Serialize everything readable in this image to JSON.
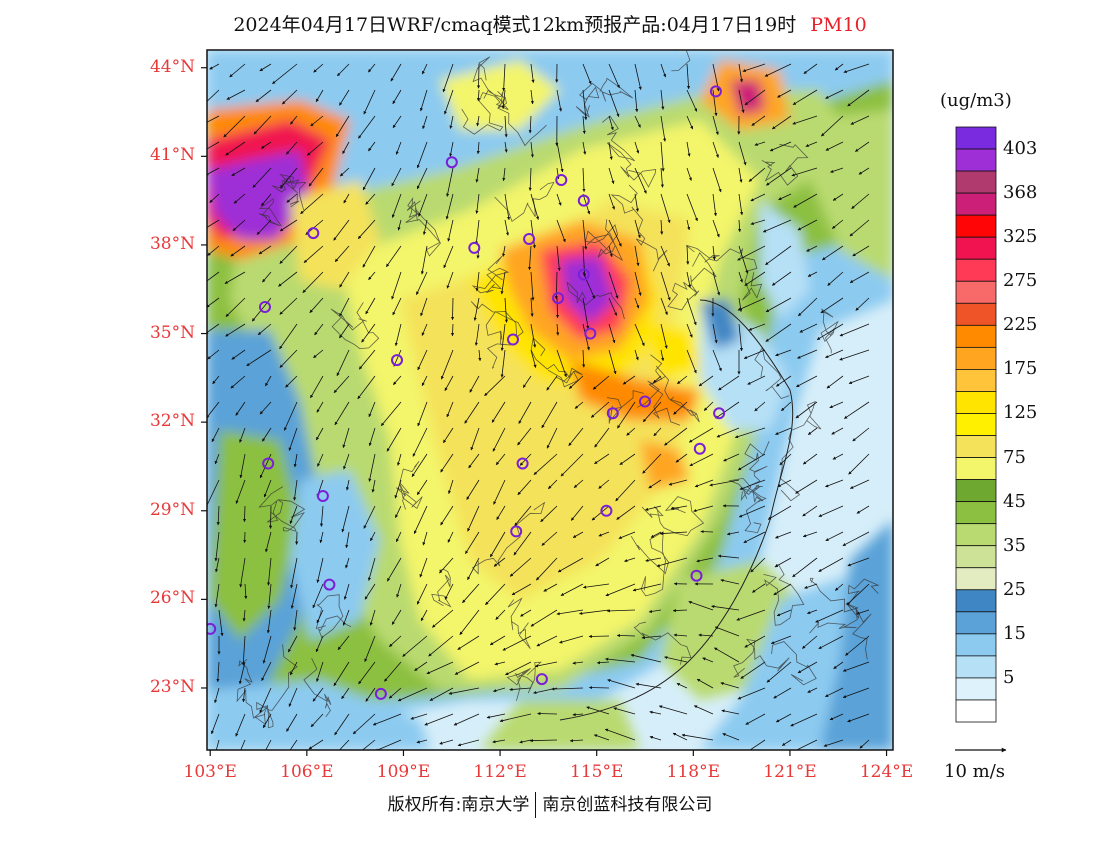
{
  "title": {
    "main": "2024年04月17日WRF/cmaq模式12km预报产品:04月17日19时",
    "pollutant": "PM10"
  },
  "axes": {
    "lat_labels": [
      "44°N",
      "41°N",
      "38°N",
      "35°N",
      "32°N",
      "29°N",
      "26°N",
      "23°N"
    ],
    "lat_values": [
      44,
      41,
      38,
      35,
      32,
      29,
      26,
      23
    ],
    "lon_labels": [
      "103°E",
      "106°E",
      "109°E",
      "112°E",
      "115°E",
      "118°E",
      "121°E",
      "124°E"
    ],
    "lon_values": [
      103,
      106,
      109,
      112,
      115,
      118,
      121,
      124
    ],
    "lat_range": [
      20.9,
      44.6
    ],
    "lon_range": [
      102.9,
      124.2
    ]
  },
  "colorbar": {
    "unit": "(ug/m3)",
    "labels": [
      "403",
      "368",
      "325",
      "275",
      "225",
      "175",
      "125",
      "75",
      "45",
      "35",
      "25",
      "15",
      "5"
    ],
    "colors": [
      "#7a2be0",
      "#9e2fd6",
      "#b03a6e",
      "#cc1f78",
      "#ff0505",
      "#f0134f",
      "#ff3a56",
      "#f86a6a",
      "#ee5428",
      "#ff8a00",
      "#ffa520",
      "#ffc43a",
      "#ffe400",
      "#fff000",
      "#f4e25a",
      "#f3f56a",
      "#6ea830",
      "#8cc040",
      "#b9da70",
      "#cde296",
      "#e2ecc0",
      "#3f86c4",
      "#5aa2d8",
      "#8ccaf0",
      "#b6e0f6",
      "#ddf2fb",
      "#ffffff"
    ]
  },
  "stations": [
    {
      "lon": 118.7,
      "lat": 43.2
    },
    {
      "lon": 110.5,
      "lat": 40.8
    },
    {
      "lon": 113.9,
      "lat": 40.2
    },
    {
      "lon": 114.6,
      "lat": 39.5
    },
    {
      "lon": 106.2,
      "lat": 38.4
    },
    {
      "lon": 111.2,
      "lat": 37.9
    },
    {
      "lon": 112.9,
      "lat": 38.2
    },
    {
      "lon": 114.6,
      "lat": 37.0
    },
    {
      "lon": 113.8,
      "lat": 36.2
    },
    {
      "lon": 104.7,
      "lat": 35.9
    },
    {
      "lon": 112.4,
      "lat": 34.8
    },
    {
      "lon": 114.8,
      "lat": 35.0
    },
    {
      "lon": 108.8,
      "lat": 34.1
    },
    {
      "lon": 116.5,
      "lat": 32.7
    },
    {
      "lon": 118.8,
      "lat": 32.3
    },
    {
      "lon": 115.5,
      "lat": 32.3
    },
    {
      "lon": 118.2,
      "lat": 31.1
    },
    {
      "lon": 104.8,
      "lat": 30.6
    },
    {
      "lon": 112.7,
      "lat": 30.6
    },
    {
      "lon": 106.5,
      "lat": 29.5
    },
    {
      "lon": 115.3,
      "lat": 29.0
    },
    {
      "lon": 112.5,
      "lat": 28.3
    },
    {
      "lon": 106.7,
      "lat": 26.5
    },
    {
      "lon": 118.1,
      "lat": 26.8
    },
    {
      "lon": 103.0,
      "lat": 25.0
    },
    {
      "lon": 113.3,
      "lat": 23.3
    },
    {
      "lon": 108.3,
      "lat": 22.8
    }
  ],
  "legend": {
    "wind_label": "10 m/s",
    "wind_ref_speed": 10
  },
  "footer": {
    "left": "版权所有:南京大学",
    "right": "南京创蓝科技有限公司"
  }
}
